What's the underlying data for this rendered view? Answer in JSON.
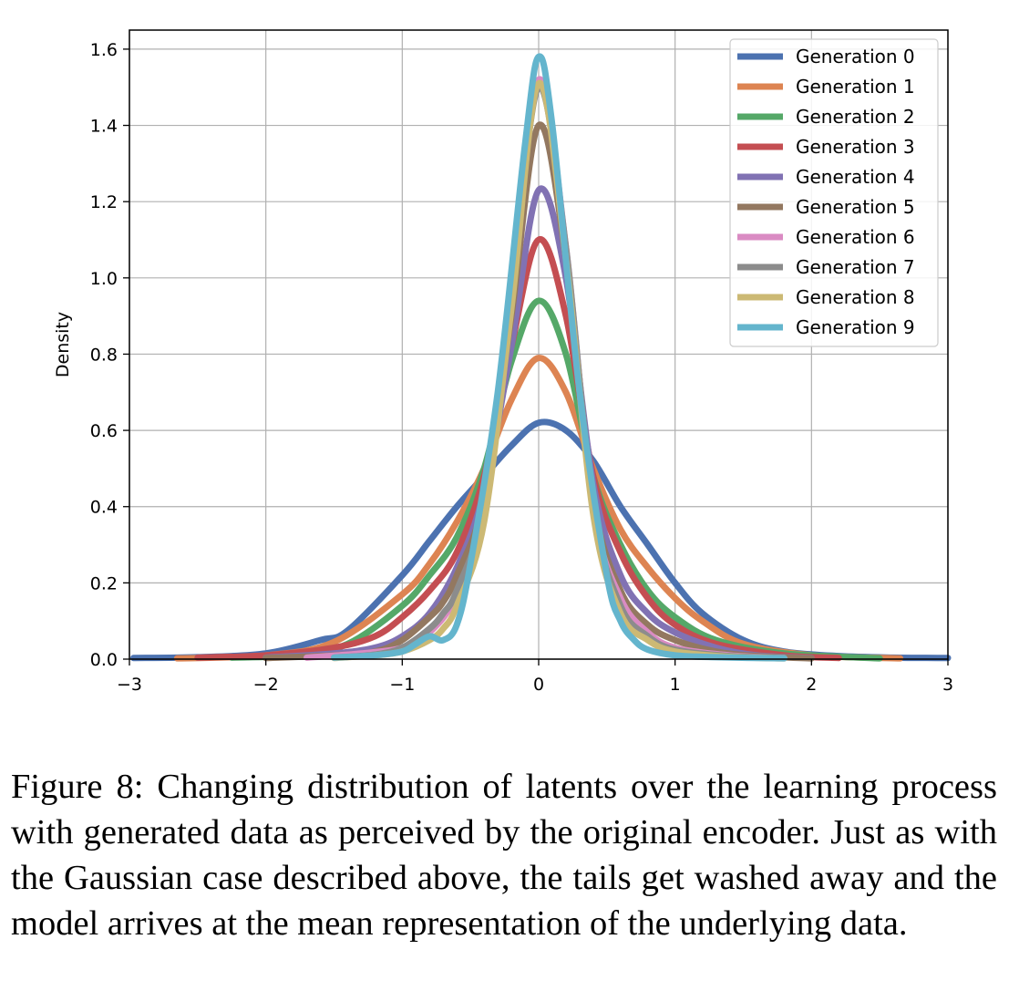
{
  "chart_data": {
    "type": "line",
    "title": "",
    "xlabel": "",
    "ylabel": "Density",
    "xlim": [
      -3,
      3
    ],
    "ylim": [
      0,
      1.65
    ],
    "grid": true,
    "legend_position": "top-right",
    "x_ticks": [
      -3,
      -2,
      -1,
      0,
      1,
      2,
      3
    ],
    "x_tick_labels": [
      "−3",
      "−2",
      "−1",
      "0",
      "1",
      "2",
      "3"
    ],
    "y_ticks": [
      0.0,
      0.2,
      0.4,
      0.6,
      0.8,
      1.0,
      1.2,
      1.4,
      1.6
    ],
    "y_tick_labels": [
      "0.0",
      "0.2",
      "0.4",
      "0.6",
      "0.8",
      "1.0",
      "1.2",
      "1.4",
      "1.6"
    ],
    "series": [
      {
        "name": "Generation 0",
        "color": "#4c72b0",
        "peak": 0.62,
        "x_range": [
          -2.97,
          3.0
        ],
        "x": [
          -2.97,
          -2.5,
          -2.0,
          -1.6,
          -1.4,
          -1.0,
          -0.8,
          -0.6,
          -0.4,
          -0.2,
          0.0,
          0.2,
          0.4,
          0.6,
          0.8,
          1.0,
          1.2,
          1.5,
          1.8,
          2.2,
          2.6,
          3.0
        ],
        "y": [
          0.003,
          0.005,
          0.015,
          0.05,
          0.075,
          0.22,
          0.31,
          0.4,
          0.48,
          0.56,
          0.62,
          0.6,
          0.52,
          0.4,
          0.3,
          0.2,
          0.12,
          0.05,
          0.02,
          0.008,
          0.004,
          0.003
        ]
      },
      {
        "name": "Generation 1",
        "color": "#dd8452",
        "peak": 0.79,
        "x_range": [
          -2.65,
          2.65
        ],
        "x": [
          -2.65,
          -2.0,
          -1.5,
          -1.0,
          -0.8,
          -0.6,
          -0.4,
          -0.2,
          0.0,
          0.2,
          0.4,
          0.6,
          0.8,
          1.0,
          1.2,
          1.5,
          2.0,
          2.65
        ],
        "y": [
          0.002,
          0.01,
          0.045,
          0.17,
          0.25,
          0.36,
          0.5,
          0.68,
          0.79,
          0.7,
          0.5,
          0.34,
          0.24,
          0.16,
          0.1,
          0.04,
          0.01,
          0.002
        ]
      },
      {
        "name": "Generation 2",
        "color": "#55a868",
        "peak": 0.94,
        "x_range": [
          -2.25,
          2.5
        ],
        "x": [
          -2.25,
          -1.8,
          -1.4,
          -1.0,
          -0.8,
          -0.6,
          -0.4,
          -0.2,
          0.0,
          0.2,
          0.4,
          0.6,
          0.8,
          1.0,
          1.3,
          1.8,
          2.5
        ],
        "y": [
          0.004,
          0.01,
          0.04,
          0.14,
          0.22,
          0.32,
          0.5,
          0.78,
          0.94,
          0.8,
          0.48,
          0.3,
          0.18,
          0.11,
          0.05,
          0.015,
          0.002
        ]
      },
      {
        "name": "Generation 3",
        "color": "#c44e52",
        "peak": 1.1,
        "x_range": [
          -2.5,
          2.2
        ],
        "x": [
          -2.5,
          -2.0,
          -1.5,
          -1.2,
          -1.0,
          -0.8,
          -0.6,
          -0.4,
          -0.2,
          0.0,
          0.2,
          0.4,
          0.6,
          0.8,
          1.0,
          1.3,
          1.8,
          2.2
        ],
        "y": [
          0.004,
          0.01,
          0.03,
          0.06,
          0.11,
          0.18,
          0.28,
          0.48,
          0.82,
          1.1,
          0.9,
          0.48,
          0.28,
          0.16,
          0.09,
          0.04,
          0.01,
          0.003
        ]
      },
      {
        "name": "Generation 4",
        "color": "#8172b3",
        "peak": 1.24,
        "x_range": [
          -2.0,
          2.0
        ],
        "x": [
          -2.0,
          -1.5,
          -1.2,
          -1.0,
          -0.8,
          -0.6,
          -0.4,
          -0.2,
          0.0,
          0.2,
          0.4,
          0.6,
          0.8,
          1.0,
          1.3,
          1.6,
          2.0
        ],
        "y": [
          0.004,
          0.015,
          0.03,
          0.06,
          0.12,
          0.24,
          0.44,
          0.82,
          1.23,
          1.0,
          0.46,
          0.22,
          0.12,
          0.07,
          0.03,
          0.01,
          0.003
        ]
      },
      {
        "name": "Generation 5",
        "color": "#937860",
        "peak": 1.41,
        "x_range": [
          -2.0,
          2.0
        ],
        "x": [
          -2.0,
          -1.5,
          -1.2,
          -1.0,
          -0.8,
          -0.7,
          -0.6,
          -0.4,
          -0.2,
          0.0,
          0.2,
          0.4,
          0.6,
          0.8,
          1.0,
          1.3,
          1.6,
          2.0
        ],
        "y": [
          0.003,
          0.01,
          0.02,
          0.05,
          0.11,
          0.15,
          0.22,
          0.42,
          0.9,
          1.4,
          1.05,
          0.42,
          0.18,
          0.09,
          0.05,
          0.02,
          0.008,
          0.002
        ]
      },
      {
        "name": "Generation 6",
        "color": "#da8bc3",
        "peak": 1.52,
        "x_range": [
          -1.7,
          1.8
        ],
        "x": [
          -1.7,
          -1.3,
          -1.0,
          -0.8,
          -0.6,
          -0.4,
          -0.2,
          0.0,
          0.2,
          0.4,
          0.6,
          0.8,
          1.0,
          1.4,
          1.8
        ],
        "y": [
          0.004,
          0.015,
          0.03,
          0.07,
          0.17,
          0.4,
          0.95,
          1.52,
          1.08,
          0.4,
          0.16,
          0.07,
          0.03,
          0.01,
          0.003
        ]
      },
      {
        "name": "Generation 7",
        "color": "#8c8c8c",
        "peak": 1.5,
        "x_range": [
          -1.5,
          1.8
        ],
        "x": [
          -1.5,
          -1.2,
          -1.0,
          -0.8,
          -0.7,
          -0.6,
          -0.4,
          -0.2,
          0.0,
          0.2,
          0.4,
          0.6,
          0.8,
          1.0,
          1.4,
          1.8
        ],
        "y": [
          0.004,
          0.012,
          0.03,
          0.08,
          0.12,
          0.18,
          0.4,
          0.95,
          1.5,
          1.08,
          0.4,
          0.14,
          0.06,
          0.025,
          0.008,
          0.003
        ]
      },
      {
        "name": "Generation 8",
        "color": "#ccb974",
        "peak": 1.51,
        "x_range": [
          -1.5,
          1.8
        ],
        "x": [
          -1.5,
          -1.2,
          -1.0,
          -0.8,
          -0.7,
          -0.6,
          -0.4,
          -0.2,
          0.0,
          0.2,
          0.4,
          0.6,
          0.8,
          1.0,
          1.4,
          1.8
        ],
        "y": [
          0.003,
          0.01,
          0.02,
          0.05,
          0.08,
          0.14,
          0.36,
          0.92,
          1.51,
          1.05,
          0.38,
          0.12,
          0.05,
          0.02,
          0.006,
          0.002
        ]
      },
      {
        "name": "Generation 9",
        "color": "#64b5cd",
        "peak": 1.58,
        "x_range": [
          -1.5,
          1.8
        ],
        "x": [
          -1.5,
          -1.2,
          -1.0,
          -0.9,
          -0.8,
          -0.7,
          -0.6,
          -0.5,
          -0.3,
          -0.1,
          0.0,
          0.1,
          0.3,
          0.5,
          0.6,
          0.7,
          0.8,
          1.0,
          1.3,
          1.8
        ],
        "y": [
          0.004,
          0.01,
          0.02,
          0.04,
          0.06,
          0.05,
          0.09,
          0.25,
          0.7,
          1.35,
          1.58,
          1.4,
          0.7,
          0.22,
          0.1,
          0.05,
          0.025,
          0.01,
          0.005,
          0.002
        ]
      }
    ]
  },
  "caption": "Figure 8: Changing distribution of latents over the learning process with generated data as perceived by the original encoder. Just as with the Gaussian case described above, the tails get washed away and the model arrives at the mean representation of the underlying data."
}
